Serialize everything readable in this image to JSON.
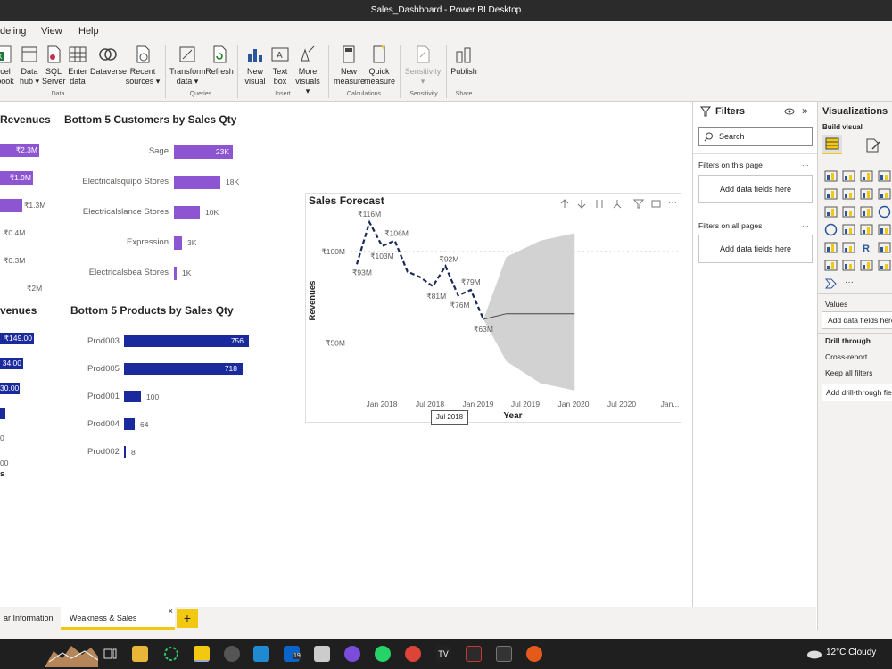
{
  "window": {
    "title": "Sales_Dashboard - Power BI Desktop"
  },
  "menu": {
    "items": [
      "deling",
      "View",
      "Help"
    ]
  },
  "ribbon": {
    "buttons": [
      {
        "label1": "cel",
        "label2": "book"
      },
      {
        "label1": "Data",
        "label2": "hub ▾"
      },
      {
        "label1": "SQL",
        "label2": "Server"
      },
      {
        "label1": "Enter",
        "label2": "data"
      },
      {
        "label1": "Dataverse",
        "label2": ""
      },
      {
        "label1": "Recent",
        "label2": "sources ▾"
      },
      {
        "label1": "Transform",
        "label2": "data ▾"
      },
      {
        "label1": "Refresh",
        "label2": ""
      },
      {
        "label1": "New",
        "label2": "visual"
      },
      {
        "label1": "Text",
        "label2": "box"
      },
      {
        "label1": "More",
        "label2": "visuals ▾"
      },
      {
        "label1": "New",
        "label2": "measure"
      },
      {
        "label1": "Quick",
        "label2": "measure"
      },
      {
        "label1": "Sensitivity",
        "label2": "▾"
      },
      {
        "label1": "Publish",
        "label2": ""
      }
    ],
    "groups": [
      "Data",
      "Queries",
      "Insert",
      "Calculations",
      "Sensitivity",
      "Share"
    ]
  },
  "canvas": {
    "left_revenues": {
      "title": "Revenues",
      "values": [
        "₹2.3M",
        "₹1.9M",
        "₹1.3M",
        "₹0.4M",
        "₹0.3M",
        "₹2M"
      ],
      "fractions": [
        1.0,
        0.83,
        0.57,
        0.17,
        0.13,
        0.87
      ]
    },
    "customers": {
      "title": "Bottom 5 Customers by Sales Qty",
      "categories": [
        "Sage",
        "Electricalsquipo Stores",
        "Electricalslance Stores",
        "Expression",
        "Electricalsbea Stores"
      ],
      "values": [
        23,
        18,
        10,
        3,
        1
      ],
      "labels": [
        "23K",
        "18K",
        "10K",
        "3K",
        "1K"
      ]
    },
    "left_revenues2": {
      "title": "venues",
      "values": [
        "₹149.00",
        "34.00",
        "30.00",
        "",
        "0",
        "00"
      ],
      "extra": "s"
    },
    "products": {
      "title": "Bottom 5 Products by Sales Qty",
      "categories": [
        "Prod003",
        "Prod005",
        "Prod001",
        "Prod004",
        "Prod002"
      ],
      "values": [
        756,
        718,
        100,
        64,
        8
      ],
      "labels": [
        "756",
        "718",
        "100",
        "64",
        "8"
      ]
    }
  },
  "chart_data": {
    "type": "line",
    "title": "Sales Forecast",
    "xlabel": "Year",
    "ylabel": "Revenues",
    "x_ticks": [
      "Jan 2018",
      "Jul 2018",
      "Jan 2019",
      "Jul 2019",
      "Jan 2020",
      "Jul 2020",
      "Jan..."
    ],
    "y_ticks": [
      "₹100M",
      "₹50M"
    ],
    "ylim": [
      20,
      140
    ],
    "series": [
      {
        "name": "",
        "points": [
          {
            "x": 0,
            "y": 93,
            "label": "₹93M"
          },
          {
            "x": 1,
            "y": 116,
            "label": "₹116M"
          },
          {
            "x": 2,
            "y": 103,
            "label": "₹103M"
          },
          {
            "x": 3,
            "y": 106,
            "label": "₹106M"
          },
          {
            "x": 4,
            "y": 89,
            "label": ""
          },
          {
            "x": 5,
            "y": 86,
            "label": ""
          },
          {
            "x": 6,
            "y": 81,
            "label": "₹81M"
          },
          {
            "x": 7,
            "y": 92,
            "label": "₹92M"
          },
          {
            "x": 8,
            "y": 76,
            "label": "₹76M"
          },
          {
            "x": 9,
            "y": 79,
            "label": "₹79M"
          },
          {
            "x": 10,
            "y": 63,
            "label": "₹63M"
          }
        ]
      }
    ],
    "forecast": {
      "start_x": 10,
      "end_x": 16,
      "y": [
        63,
        66,
        66,
        66
      ],
      "upper": [
        63,
        97,
        106,
        110
      ],
      "lower": [
        63,
        40,
        28,
        24
      ]
    },
    "tooltip": "Jul 2018",
    "grid": true
  },
  "filters": {
    "title": "Filters",
    "search_placeholder": "Search",
    "on_page": "Filters on this page",
    "on_all": "Filters on all pages",
    "add_fields": "Add data fields here",
    "add_fields2": "Add data fields here",
    "more": "..."
  },
  "viz": {
    "title": "Visualizations",
    "build": "Build visual",
    "values": "Values",
    "add_fields": "Add data fields here",
    "drill": "Drill through",
    "cross": "Cross-report",
    "keep": "Keep all filters",
    "add_drill": "Add drill-through fie"
  },
  "tabs": {
    "items": [
      "ar Information",
      "Weakness & Sales Forecast"
    ],
    "add": "+",
    "close": "×"
  },
  "taskbar": {
    "weather": "12°C  Cloudy",
    "badge": "19"
  },
  "colors": {
    "purple": "#8d55d2",
    "navy": "#1a2a9c",
    "yellow": "#f2c811",
    "forecast_line": "#1b2a57"
  }
}
